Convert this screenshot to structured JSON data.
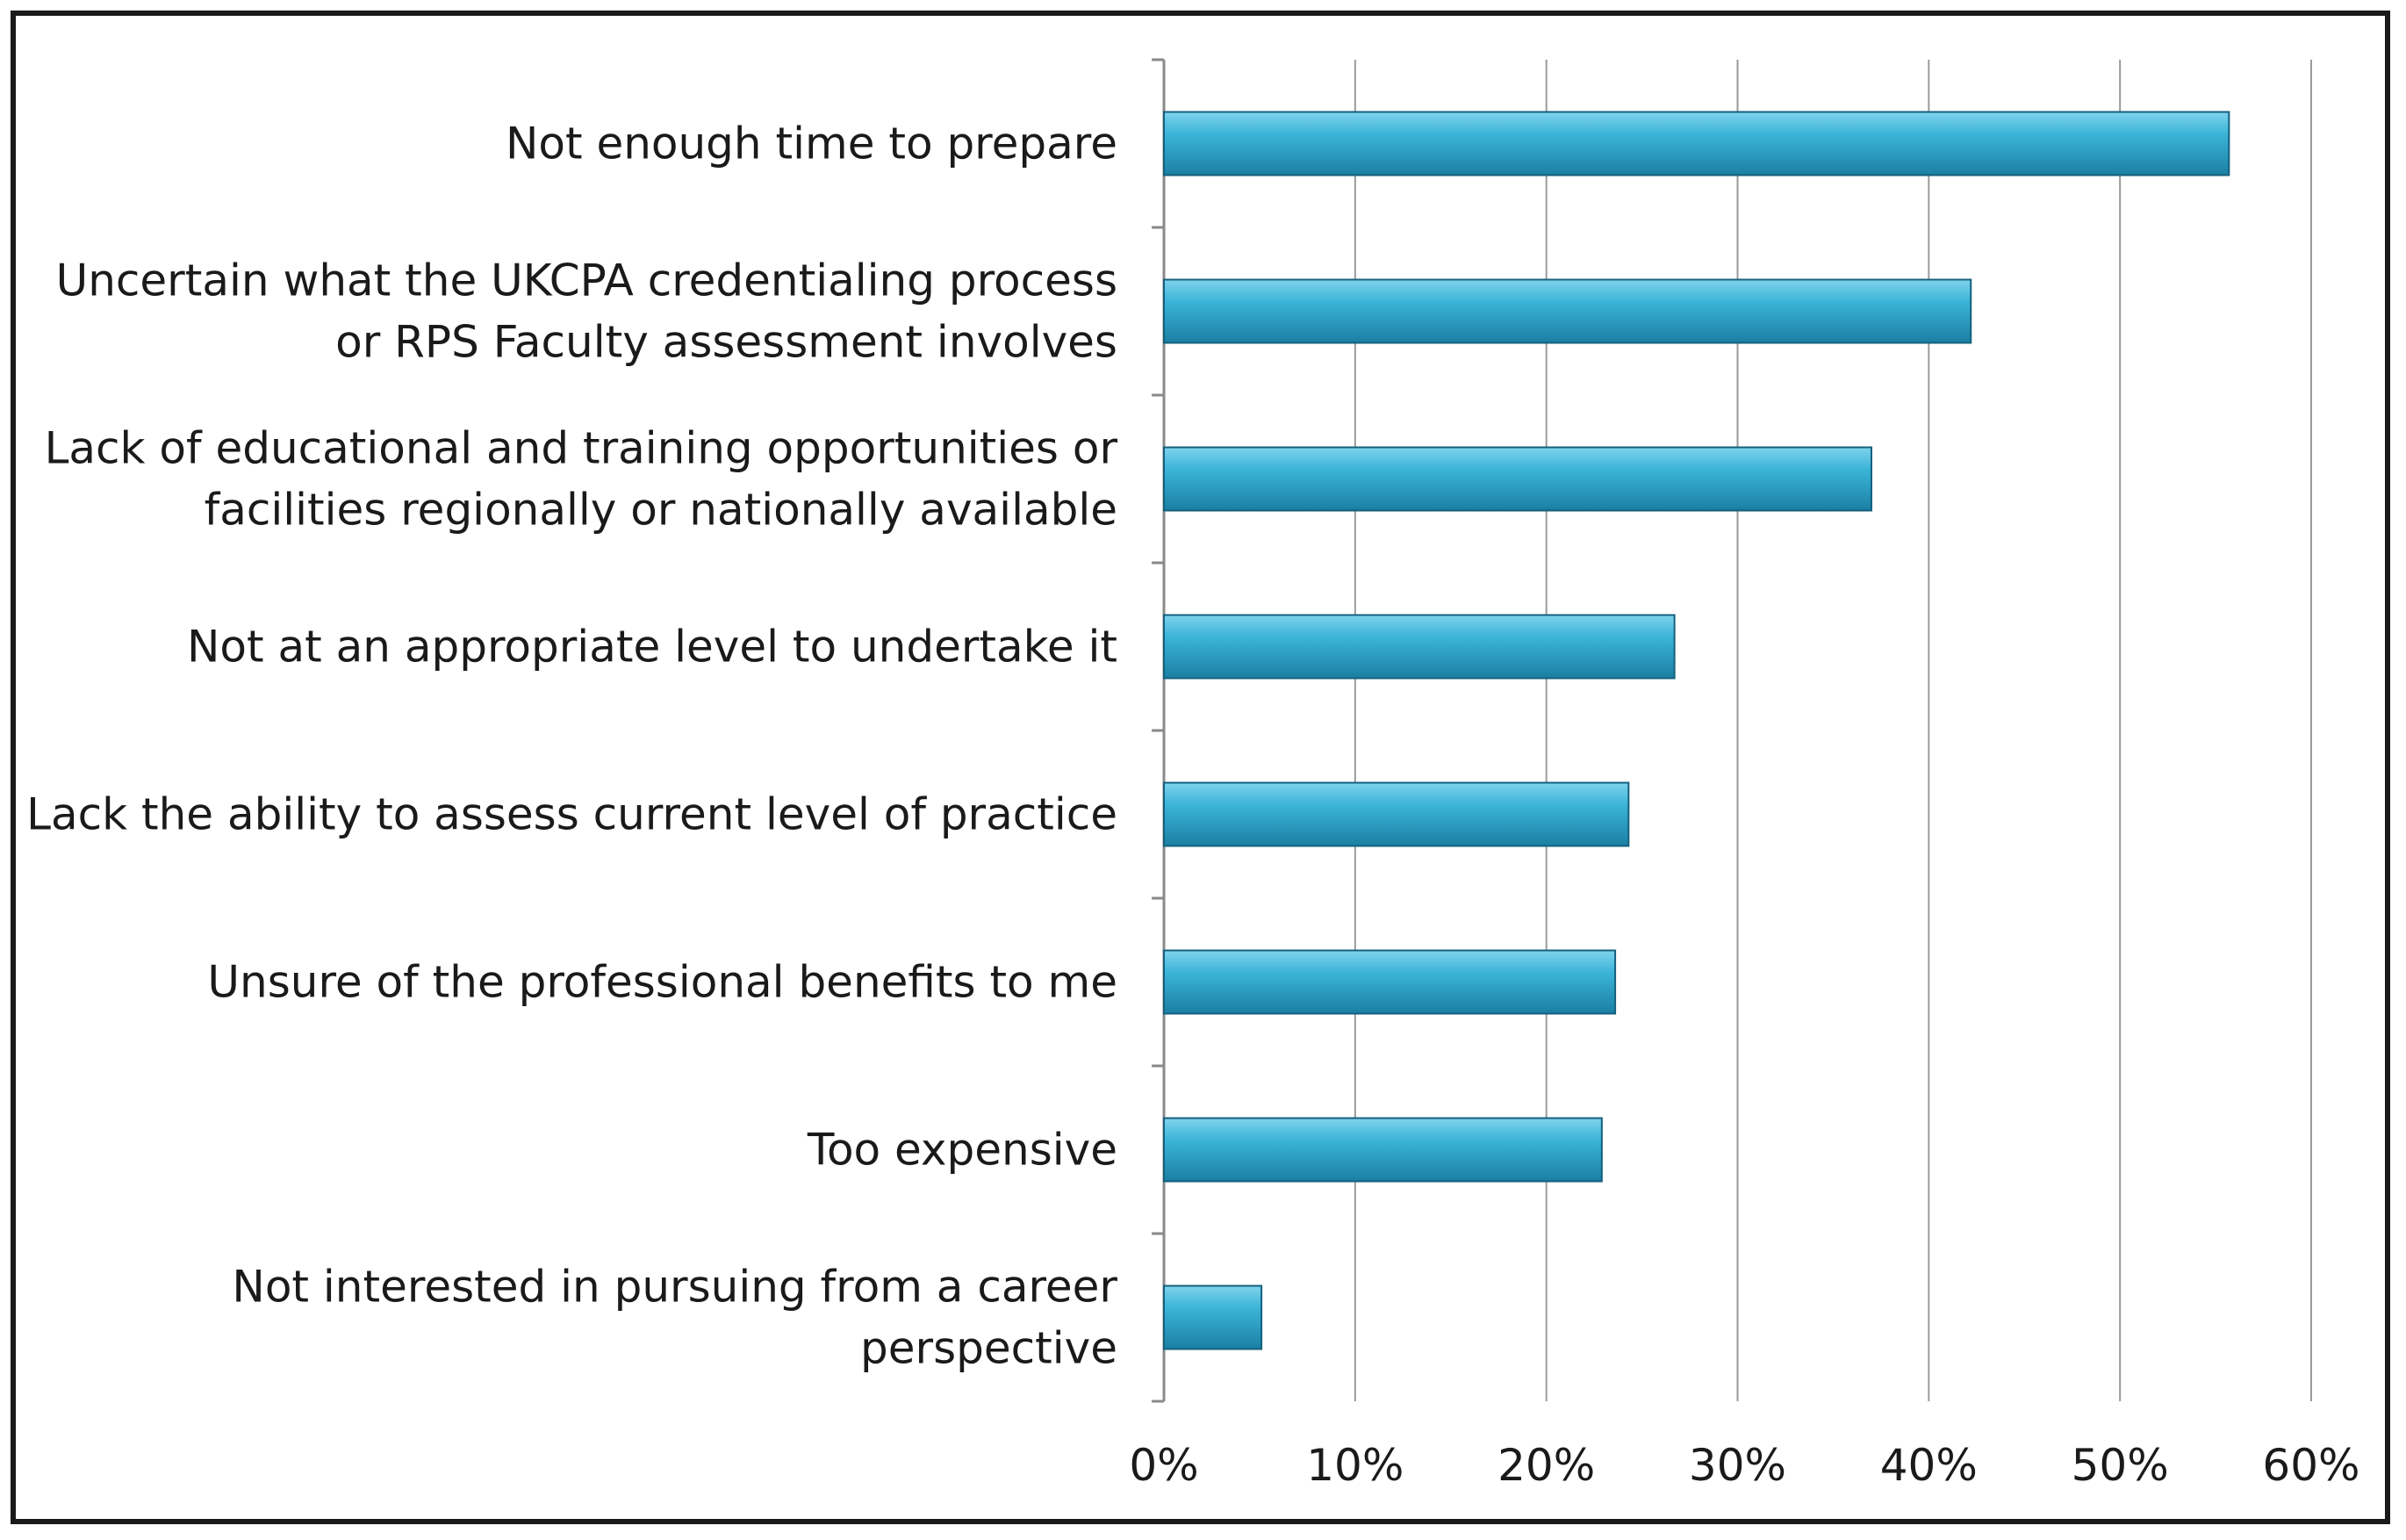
{
  "chart_data": {
    "type": "bar",
    "orientation": "horizontal",
    "title": "",
    "xlabel": "",
    "ylabel": "",
    "categories": [
      [
        "Not enough time to prepare"
      ],
      [
        "Uncertain what the UKCPA credentialing process",
        "or RPS Faculty assessment involves"
      ],
      [
        "Lack of educational and training opportunities or",
        "facilities regionally or nationally available"
      ],
      [
        "Not at an appropriate level to undertake it"
      ],
      [
        "Lack the ability to assess current level of practice"
      ],
      [
        "Unsure of the professional benefits to me"
      ],
      [
        "Too expensive"
      ],
      [
        "Not interested in pursuing from a career",
        "perspective"
      ]
    ],
    "values": [
      55.7,
      42.2,
      37.0,
      26.7,
      24.3,
      23.6,
      22.9,
      5.1
    ],
    "xlim": [
      0,
      60
    ],
    "ticks": [
      "0%",
      "10%",
      "20%",
      "30%",
      "40%",
      "50%",
      "60%"
    ],
    "grid": "vertical",
    "legend": "none",
    "colors": {
      "bar_fill_light": "#7fd3ec",
      "bar_fill_mid": "#3bb4d8",
      "bar_fill_dark": "#1a7fa3",
      "bar_stroke": "#15607d",
      "gridline": "#9a9a9a",
      "axis": "#8a8a8a"
    }
  }
}
